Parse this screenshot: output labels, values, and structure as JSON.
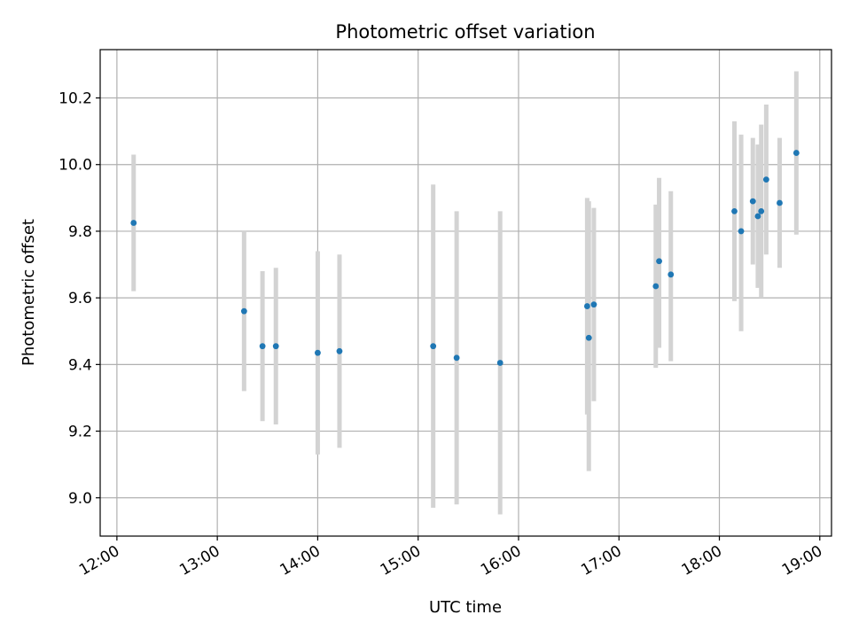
{
  "chart_data": {
    "type": "scatter",
    "title": "Photometric offset variation",
    "xlabel": "UTC time",
    "ylabel": "Photometric offset",
    "xlim": [
      "11:50",
      "19:07"
    ],
    "ylim": [
      8.885,
      10.345
    ],
    "grid": true,
    "x_ticks": [
      "12:00",
      "13:00",
      "14:00",
      "15:00",
      "16:00",
      "17:00",
      "18:00",
      "19:00"
    ],
    "y_ticks": [
      "9.0",
      "9.2",
      "9.4",
      "9.6",
      "9.8",
      "10.0",
      "10.2"
    ],
    "colors": {
      "marker": "#1f77b4",
      "errorbar": "#d3d3d3",
      "grid": "#b0b0b0"
    },
    "series": [
      {
        "points": [
          {
            "x": "12:10",
            "y": 9.825,
            "ylow": 9.62,
            "yhigh": 10.03
          },
          {
            "x": "13:16",
            "y": 9.56,
            "ylow": 9.32,
            "yhigh": 9.8
          },
          {
            "x": "13:27",
            "y": 9.455,
            "ylow": 9.23,
            "yhigh": 9.68
          },
          {
            "x": "13:35",
            "y": 9.455,
            "ylow": 9.22,
            "yhigh": 9.69
          },
          {
            "x": "14:00",
            "y": 9.435,
            "ylow": 9.13,
            "yhigh": 9.74
          },
          {
            "x": "14:13",
            "y": 9.44,
            "ylow": 9.15,
            "yhigh": 9.73
          },
          {
            "x": "15:09",
            "y": 9.455,
            "ylow": 8.97,
            "yhigh": 9.94
          },
          {
            "x": "15:23",
            "y": 9.42,
            "ylow": 8.98,
            "yhigh": 9.86
          },
          {
            "x": "15:49",
            "y": 9.405,
            "ylow": 8.95,
            "yhigh": 9.86
          },
          {
            "x": "16:41",
            "y": 9.575,
            "ylow": 9.25,
            "yhigh": 9.9
          },
          {
            "x": "16:42",
            "y": 9.48,
            "ylow": 9.08,
            "yhigh": 9.89
          },
          {
            "x": "16:45",
            "y": 9.58,
            "ylow": 9.29,
            "yhigh": 9.87
          },
          {
            "x": "17:22",
            "y": 9.635,
            "ylow": 9.39,
            "yhigh": 9.88
          },
          {
            "x": "17:24",
            "y": 9.71,
            "ylow": 9.45,
            "yhigh": 9.96
          },
          {
            "x": "17:31",
            "y": 9.67,
            "ylow": 9.41,
            "yhigh": 9.92
          },
          {
            "x": "18:09",
            "y": 9.86,
            "ylow": 9.59,
            "yhigh": 10.13
          },
          {
            "x": "18:13",
            "y": 9.8,
            "ylow": 9.5,
            "yhigh": 10.09
          },
          {
            "x": "18:20",
            "y": 9.89,
            "ylow": 9.7,
            "yhigh": 10.08
          },
          {
            "x": "18:23",
            "y": 9.845,
            "ylow": 9.63,
            "yhigh": 10.06
          },
          {
            "x": "18:25",
            "y": 9.86,
            "ylow": 9.6,
            "yhigh": 10.12
          },
          {
            "x": "18:28",
            "y": 9.955,
            "ylow": 9.73,
            "yhigh": 10.18
          },
          {
            "x": "18:36",
            "y": 9.885,
            "ylow": 9.69,
            "yhigh": 10.08
          },
          {
            "x": "18:46",
            "y": 10.035,
            "ylow": 9.79,
            "yhigh": 10.28
          }
        ]
      }
    ]
  }
}
